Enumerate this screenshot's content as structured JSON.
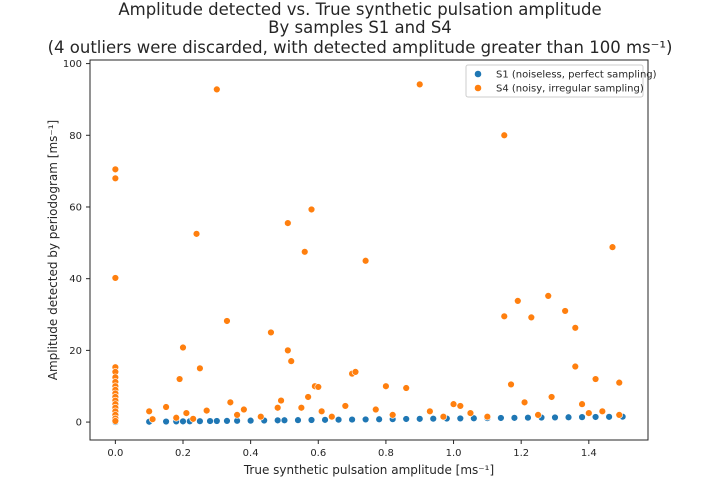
{
  "title": {
    "line1": "Amplitude detected vs. True synthetic pulsation amplitude",
    "line2": "By samples S1 and S4",
    "line3": "(4 outliers were discarded, with detected amplitude greater than 100 ms⁻¹)"
  },
  "colors": {
    "s1": "#1f77b4",
    "s4": "#ff7f0e",
    "frame": "#262626"
  },
  "chart_data": {
    "type": "scatter",
    "xlabel": "True synthetic pulsation amplitude [ms⁻¹]",
    "ylabel": "Amplitude detected by periodogram [ms⁻¹]",
    "xlim": [
      -0.075,
      1.575
    ],
    "ylim": [
      -5,
      101
    ],
    "xticks": [
      "0.0",
      "0.2",
      "0.4",
      "0.6",
      "0.8",
      "1.0",
      "1.2",
      "1.4"
    ],
    "yticks": [
      "0",
      "20",
      "40",
      "60",
      "80",
      "100"
    ],
    "grid": false,
    "legend": "top-right",
    "series": [
      {
        "name": "S1 (noiseless, perfect sampling)",
        "color": "#1f77b4",
        "points": [
          [
            0.0,
            0.0
          ],
          [
            0.1,
            0.1
          ],
          [
            0.15,
            0.15
          ],
          [
            0.18,
            0.18
          ],
          [
            0.2,
            0.2
          ],
          [
            0.22,
            0.22
          ],
          [
            0.25,
            0.25
          ],
          [
            0.28,
            0.28
          ],
          [
            0.3,
            0.3
          ],
          [
            0.33,
            0.33
          ],
          [
            0.36,
            0.36
          ],
          [
            0.4,
            0.4
          ],
          [
            0.44,
            0.44
          ],
          [
            0.48,
            0.48
          ],
          [
            0.5,
            0.5
          ],
          [
            0.54,
            0.54
          ],
          [
            0.58,
            0.58
          ],
          [
            0.62,
            0.62
          ],
          [
            0.66,
            0.66
          ],
          [
            0.7,
            0.7
          ],
          [
            0.74,
            0.74
          ],
          [
            0.78,
            0.78
          ],
          [
            0.82,
            0.82
          ],
          [
            0.86,
            0.86
          ],
          [
            0.9,
            0.9
          ],
          [
            0.94,
            0.94
          ],
          [
            0.98,
            0.98
          ],
          [
            1.02,
            1.02
          ],
          [
            1.06,
            1.06
          ],
          [
            1.1,
            1.1
          ],
          [
            1.14,
            1.14
          ],
          [
            1.18,
            1.18
          ],
          [
            1.22,
            1.22
          ],
          [
            1.26,
            1.26
          ],
          [
            1.3,
            1.3
          ],
          [
            1.34,
            1.34
          ],
          [
            1.38,
            1.38
          ],
          [
            1.42,
            1.42
          ],
          [
            1.46,
            1.46
          ],
          [
            1.5,
            1.5
          ]
        ]
      },
      {
        "name": "S4 (noisy, irregular sampling)",
        "color": "#ff7f0e",
        "points": [
          [
            0.0,
            70.5
          ],
          [
            0.0,
            68.0
          ],
          [
            0.0,
            40.2
          ],
          [
            0.0,
            15.3
          ],
          [
            0.0,
            14.0
          ],
          [
            0.0,
            12.5
          ],
          [
            0.0,
            11.2
          ],
          [
            0.0,
            10.0
          ],
          [
            0.0,
            9.0
          ],
          [
            0.0,
            8.0
          ],
          [
            0.0,
            7.0
          ],
          [
            0.0,
            6.0
          ],
          [
            0.0,
            5.0
          ],
          [
            0.0,
            4.0
          ],
          [
            0.0,
            3.0
          ],
          [
            0.0,
            2.0
          ],
          [
            0.0,
            1.0
          ],
          [
            0.0,
            0.3
          ],
          [
            0.1,
            3.0
          ],
          [
            0.11,
            0.8
          ],
          [
            0.15,
            4.2
          ],
          [
            0.18,
            1.2
          ],
          [
            0.19,
            12.0
          ],
          [
            0.2,
            20.8
          ],
          [
            0.21,
            2.5
          ],
          [
            0.23,
            0.9
          ],
          [
            0.24,
            52.5
          ],
          [
            0.25,
            15.0
          ],
          [
            0.27,
            3.2
          ],
          [
            0.3,
            92.8
          ],
          [
            0.33,
            28.2
          ],
          [
            0.34,
            5.5
          ],
          [
            0.36,
            2.0
          ],
          [
            0.38,
            3.5
          ],
          [
            0.43,
            1.5
          ],
          [
            0.46,
            25.0
          ],
          [
            0.48,
            4.0
          ],
          [
            0.49,
            6.0
          ],
          [
            0.51,
            20.0
          ],
          [
            0.51,
            55.5
          ],
          [
            0.52,
            17.0
          ],
          [
            0.55,
            4.0
          ],
          [
            0.56,
            47.5
          ],
          [
            0.57,
            7.0
          ],
          [
            0.58,
            59.3
          ],
          [
            0.59,
            10.0
          ],
          [
            0.6,
            9.8
          ],
          [
            0.61,
            3.0
          ],
          [
            0.64,
            1.5
          ],
          [
            0.68,
            4.5
          ],
          [
            0.7,
            13.5
          ],
          [
            0.71,
            14.0
          ],
          [
            0.74,
            45.0
          ],
          [
            0.77,
            3.5
          ],
          [
            0.8,
            10.0
          ],
          [
            0.82,
            2.0
          ],
          [
            0.86,
            9.5
          ],
          [
            0.9,
            94.2
          ],
          [
            0.93,
            3.0
          ],
          [
            0.97,
            1.5
          ],
          [
            1.0,
            5.0
          ],
          [
            1.02,
            4.5
          ],
          [
            1.05,
            2.5
          ],
          [
            1.1,
            1.5
          ],
          [
            1.15,
            29.5
          ],
          [
            1.15,
            80.0
          ],
          [
            1.17,
            10.5
          ],
          [
            1.19,
            33.8
          ],
          [
            1.21,
            5.5
          ],
          [
            1.23,
            29.2
          ],
          [
            1.25,
            2.0
          ],
          [
            1.28,
            35.2
          ],
          [
            1.29,
            7.0
          ],
          [
            1.33,
            31.0
          ],
          [
            1.36,
            26.3
          ],
          [
            1.36,
            15.5
          ],
          [
            1.38,
            5.0
          ],
          [
            1.4,
            2.5
          ],
          [
            1.42,
            12.0
          ],
          [
            1.44,
            3.0
          ],
          [
            1.47,
            48.8
          ],
          [
            1.49,
            11.0
          ],
          [
            1.49,
            2.0
          ]
        ]
      }
    ]
  }
}
